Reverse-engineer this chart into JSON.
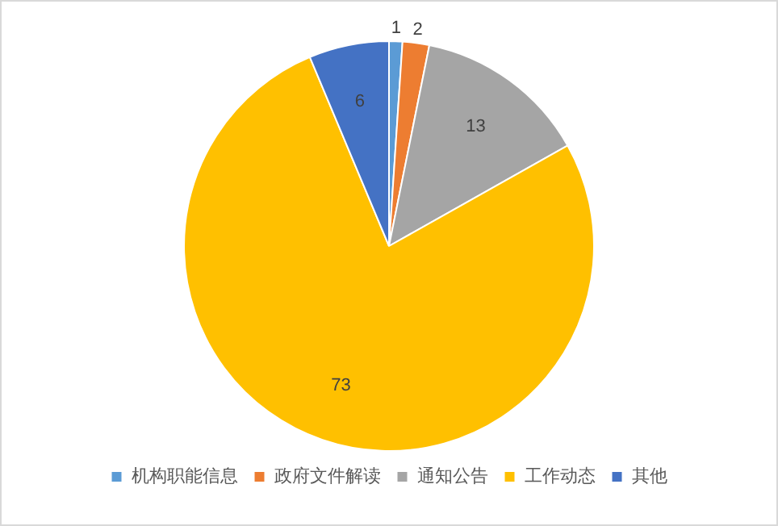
{
  "chart_data": {
    "type": "pie",
    "categories": [
      "机构职能信息",
      "政府文件解读",
      "通知公告",
      "工作动态",
      "其他"
    ],
    "values": [
      1,
      2,
      13,
      73,
      6
    ],
    "colors": [
      "#5b9bd5",
      "#ed7d31",
      "#a5a5a5",
      "#ffc000",
      "#4472c4"
    ],
    "data_labels": true,
    "legend": "bottom"
  }
}
